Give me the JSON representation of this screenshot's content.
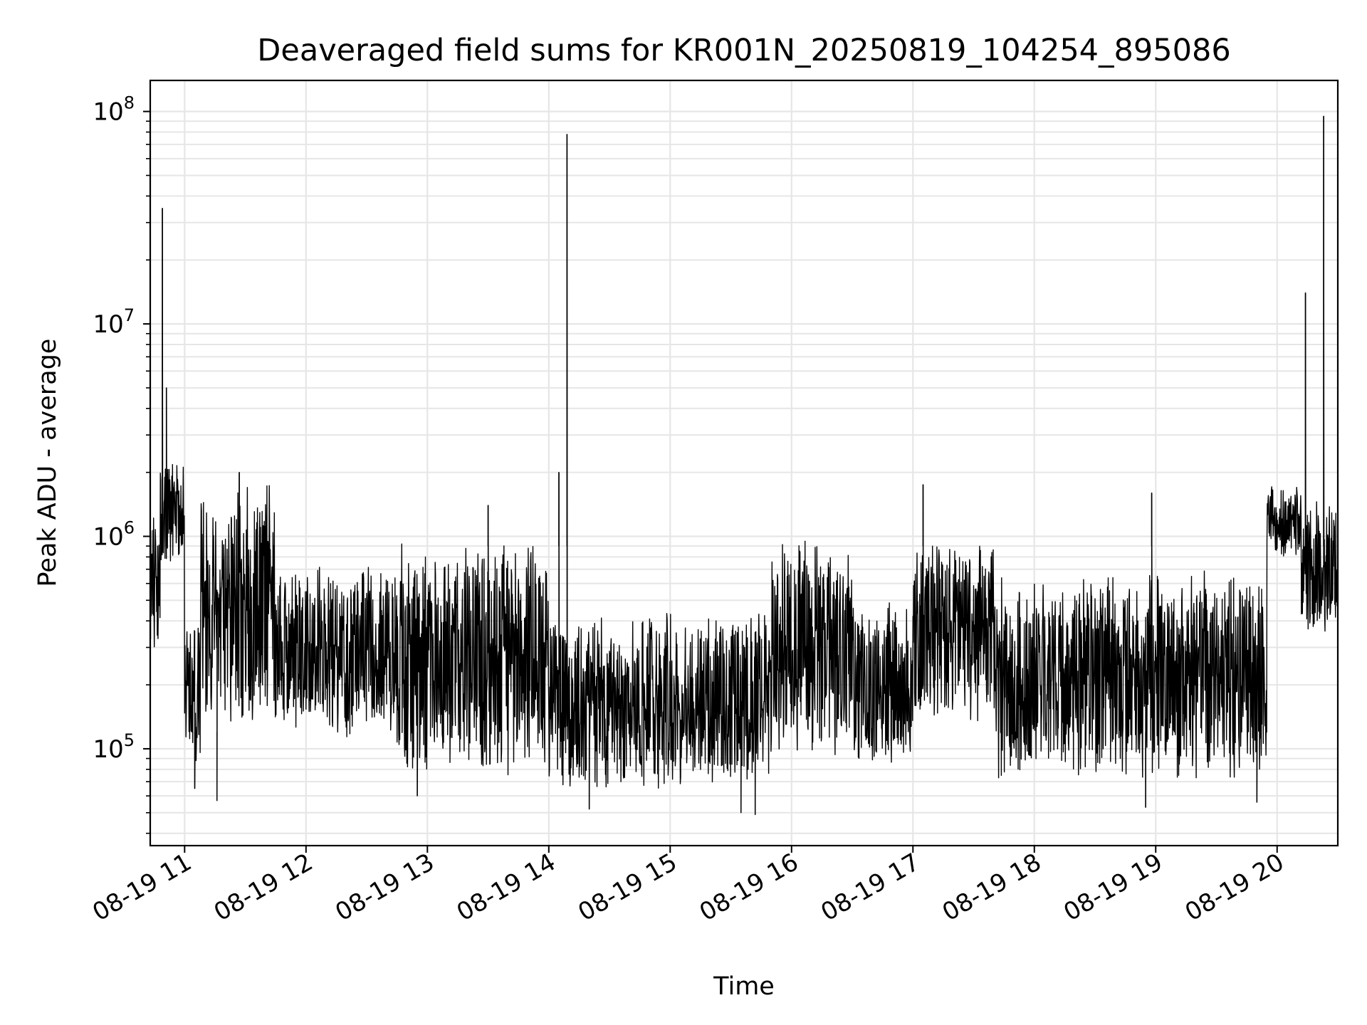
{
  "chart_data": {
    "type": "line",
    "title": "Deaveraged field sums for KR001N_20250819_104254_895086",
    "xlabel": "Time",
    "ylabel": "Peak ADU - average",
    "y_scale": "log",
    "ylim": [
      35000,
      140000000
    ],
    "xlim": [
      "2025-08-19 10:43",
      "2025-08-19 20:30"
    ],
    "x_ticks": [
      "08-19 11",
      "08-19 12",
      "08-19 13",
      "08-19 14",
      "08-19 15",
      "08-19 16",
      "08-19 17",
      "08-19 18",
      "08-19 19",
      "08-19 20"
    ],
    "y_ticks": [
      {
        "value": 100000,
        "label": "10",
        "exp": "5"
      },
      {
        "value": 1000000,
        "label": "10",
        "exp": "6"
      },
      {
        "value": 10000000,
        "label": "10",
        "exp": "7"
      },
      {
        "value": 100000000,
        "label": "10",
        "exp": "8"
      }
    ],
    "grid": true,
    "line_color": "#000000",
    "grid_color": "#e6e6e6",
    "segments": [
      {
        "start": "2025-08-19 10:43",
        "end": "2025-08-19 10:48",
        "low": 250000,
        "high": 1500000
      },
      {
        "start": "2025-08-19 10:48",
        "end": "2025-08-19 11:00",
        "low": 700000,
        "high": 2300000
      },
      {
        "start": "2025-08-19 11:00",
        "end": "2025-08-19 11:08",
        "low": 80000,
        "high": 450000
      },
      {
        "start": "2025-08-19 11:08",
        "end": "2025-08-19 11:45",
        "low": 120000,
        "high": 1800000
      },
      {
        "start": "2025-08-19 11:45",
        "end": "2025-08-19 12:45",
        "low": 110000,
        "high": 750000
      },
      {
        "start": "2025-08-19 12:45",
        "end": "2025-08-19 14:00",
        "low": 75000,
        "high": 1000000
      },
      {
        "start": "2025-08-19 14:00",
        "end": "2025-08-19 15:50",
        "low": 62000,
        "high": 450000
      },
      {
        "start": "2025-08-19 15:50",
        "end": "2025-08-19 16:30",
        "low": 90000,
        "high": 1050000
      },
      {
        "start": "2025-08-19 16:30",
        "end": "2025-08-19 17:00",
        "low": 80000,
        "high": 500000
      },
      {
        "start": "2025-08-19 17:00",
        "end": "2025-08-19 17:40",
        "low": 120000,
        "high": 1000000
      },
      {
        "start": "2025-08-19 17:40",
        "end": "2025-08-19 19:55",
        "low": 70000,
        "high": 700000
      },
      {
        "start": "2025-08-19 19:55",
        "end": "2025-08-19 20:12",
        "low": 800000,
        "high": 1800000
      },
      {
        "start": "2025-08-19 20:12",
        "end": "2025-08-19 20:30",
        "low": 320000,
        "high": 1500000
      }
    ],
    "spikes": [
      {
        "x": "2025-08-19 10:49",
        "y": 35000000
      },
      {
        "x": "2025-08-19 10:51",
        "y": 5000000
      },
      {
        "x": "2025-08-19 11:27",
        "y": 2000000
      },
      {
        "x": "2025-08-19 13:30",
        "y": 1400000
      },
      {
        "x": "2025-08-19 14:05",
        "y": 2000000
      },
      {
        "x": "2025-08-19 14:09",
        "y": 78000000
      },
      {
        "x": "2025-08-19 17:05",
        "y": 1750000
      },
      {
        "x": "2025-08-19 18:58",
        "y": 1600000
      },
      {
        "x": "2025-08-19 20:14",
        "y": 14000000
      },
      {
        "x": "2025-08-19 20:23",
        "y": 95000000
      }
    ],
    "dips": [
      {
        "x": "2025-08-19 11:05",
        "y": 65000
      },
      {
        "x": "2025-08-19 11:16",
        "y": 57000
      },
      {
        "x": "2025-08-19 12:55",
        "y": 60000
      },
      {
        "x": "2025-08-19 14:20",
        "y": 52000
      },
      {
        "x": "2025-08-19 15:35",
        "y": 50000
      },
      {
        "x": "2025-08-19 15:42",
        "y": 49000
      },
      {
        "x": "2025-08-19 18:55",
        "y": 53000
      },
      {
        "x": "2025-08-19 19:50",
        "y": 56000
      }
    ]
  }
}
